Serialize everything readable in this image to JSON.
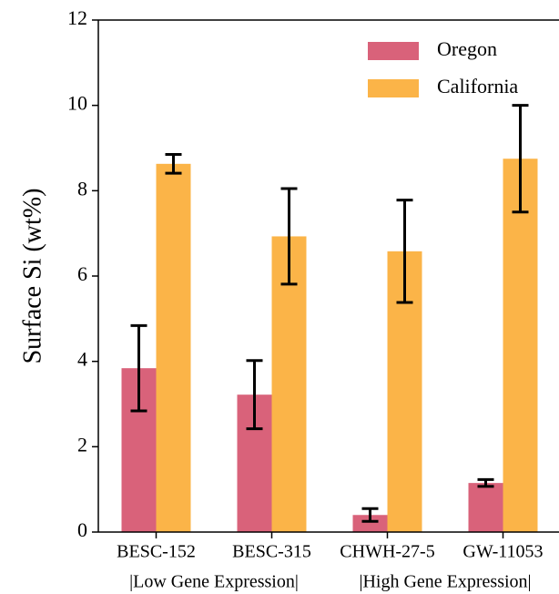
{
  "chart_data": {
    "type": "bar",
    "ylabel": "Surface Si (wt%)",
    "categories": [
      "BESC-152",
      "BESC-315",
      "CHWH-27-5",
      "GW-11053"
    ],
    "group_labels": [
      "|Low Gene Expression|",
      "|High Gene Expression|"
    ],
    "series": [
      {
        "name": "Oregon",
        "color": "#d9627a",
        "values": [
          3.84,
          3.22,
          0.4,
          1.15
        ],
        "errors": [
          1.0,
          0.8,
          0.15,
          0.08
        ]
      },
      {
        "name": "California",
        "color": "#fbb448",
        "values": [
          8.63,
          6.93,
          6.58,
          8.75
        ],
        "errors": [
          0.22,
          1.12,
          1.2,
          1.25
        ]
      }
    ],
    "ylim": [
      0,
      12
    ],
    "yticks": [
      0,
      2,
      4,
      6,
      8,
      10,
      12
    ],
    "legend": "upper right"
  }
}
